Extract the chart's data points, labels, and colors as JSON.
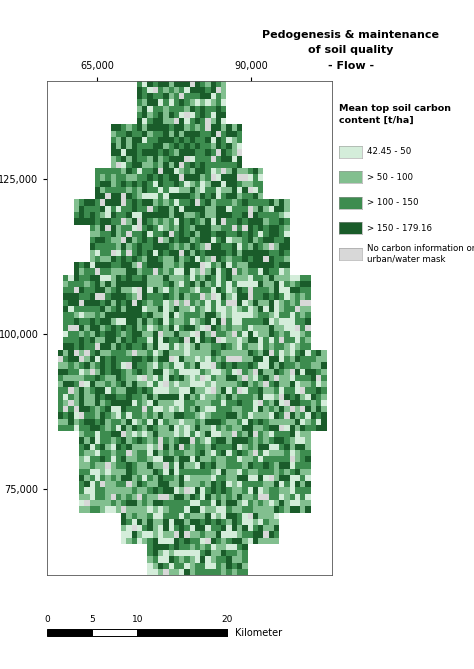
{
  "title_line1": "Pedogenesis & maintenance",
  "title_line2": "of soil quality",
  "title_line3": "- Flow -",
  "legend_title": "Mean top soil carbon\ncontent [t/ha]",
  "legend_entries": [
    {
      "label": "42.45 - 50",
      "color": "#d4edda"
    },
    {
      "label": "> 50 - 100",
      "color": "#82bf8f"
    },
    {
      "label": "> 100 - 150",
      "color": "#3d8c4f"
    },
    {
      "label": "> 150 - 179.16",
      "color": "#1a5c2a"
    },
    {
      "label": "No carbon information or\nurban/water mask",
      "color": "#d8d8d8"
    }
  ],
  "scalebar_label": "Kilometer",
  "scalebar_ticks": [
    0,
    5,
    10,
    20
  ],
  "x_ticks": [
    65000,
    90000
  ],
  "y_ticks": [
    75000,
    100000,
    125000
  ],
  "bg_color": "#ffffff",
  "x_min": 57000,
  "x_max": 103000,
  "y_min": 61000,
  "y_max": 141000,
  "nx": 55,
  "ny": 80
}
